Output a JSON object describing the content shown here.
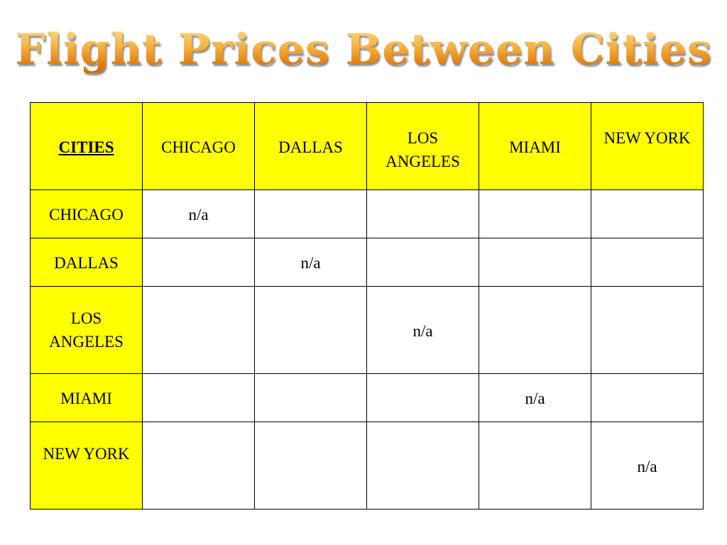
{
  "title": "Flight Prices Between Cities",
  "table": {
    "corner": "CITIES",
    "columns": [
      "CHICAGO",
      "DALLAS",
      "LOS ANGELES",
      "MIAMI",
      "NEW YORK"
    ],
    "rows": [
      {
        "city": "CHICAGO",
        "cells": [
          "n/a",
          "",
          "",
          "",
          ""
        ]
      },
      {
        "city": "DALLAS",
        "cells": [
          "",
          "n/a",
          "",
          "",
          ""
        ]
      },
      {
        "city": "LOS ANGELES",
        "cells": [
          "",
          "",
          "n/a",
          "",
          ""
        ]
      },
      {
        "city": "MIAMI",
        "cells": [
          "",
          "",
          "",
          "n/a",
          ""
        ]
      },
      {
        "city": "NEW YORK",
        "cells": [
          "",
          "",
          "",
          "",
          "n/a"
        ]
      }
    ]
  },
  "colors": {
    "header_fill": "#ffff00",
    "title_gradient_top": "#fde9a8",
    "title_gradient_bottom": "#c9650a",
    "grid_line": "#000000"
  }
}
